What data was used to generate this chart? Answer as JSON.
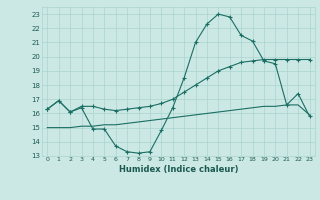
{
  "title": "",
  "xlabel": "Humidex (Indice chaleur)",
  "ylabel": "",
  "bg_color": "#cce8e4",
  "grid_color": "#aad4d0",
  "line_color": "#1a6e64",
  "x": [
    0,
    1,
    2,
    3,
    4,
    5,
    6,
    7,
    8,
    9,
    10,
    11,
    12,
    13,
    14,
    15,
    16,
    17,
    18,
    19,
    20,
    21,
    22,
    23
  ],
  "line1": [
    16.3,
    16.9,
    16.1,
    16.4,
    14.9,
    14.9,
    13.7,
    13.3,
    13.2,
    13.3,
    14.8,
    16.4,
    18.5,
    21.0,
    22.3,
    23.0,
    22.8,
    21.5,
    21.1,
    19.7,
    19.5,
    16.6,
    17.4,
    15.8
  ],
  "line2": [
    16.3,
    16.9,
    16.1,
    16.5,
    16.5,
    16.3,
    16.2,
    16.3,
    16.4,
    16.5,
    16.7,
    17.0,
    17.5,
    18.0,
    18.5,
    19.0,
    19.3,
    19.6,
    19.7,
    19.8,
    19.8,
    19.8,
    19.8,
    19.8
  ],
  "line3": [
    15.0,
    15.0,
    15.0,
    15.1,
    15.1,
    15.2,
    15.2,
    15.3,
    15.4,
    15.5,
    15.6,
    15.7,
    15.8,
    15.9,
    16.0,
    16.1,
    16.2,
    16.3,
    16.4,
    16.5,
    16.5,
    16.6,
    16.6,
    15.9
  ],
  "ylim": [
    13,
    23.5
  ],
  "xlim": [
    -0.5,
    23.5
  ],
  "yticks": [
    13,
    14,
    15,
    16,
    17,
    18,
    19,
    20,
    21,
    22,
    23
  ],
  "xticks": [
    0,
    1,
    2,
    3,
    4,
    5,
    6,
    7,
    8,
    9,
    10,
    11,
    12,
    13,
    14,
    15,
    16,
    17,
    18,
    19,
    20,
    21,
    22,
    23
  ]
}
